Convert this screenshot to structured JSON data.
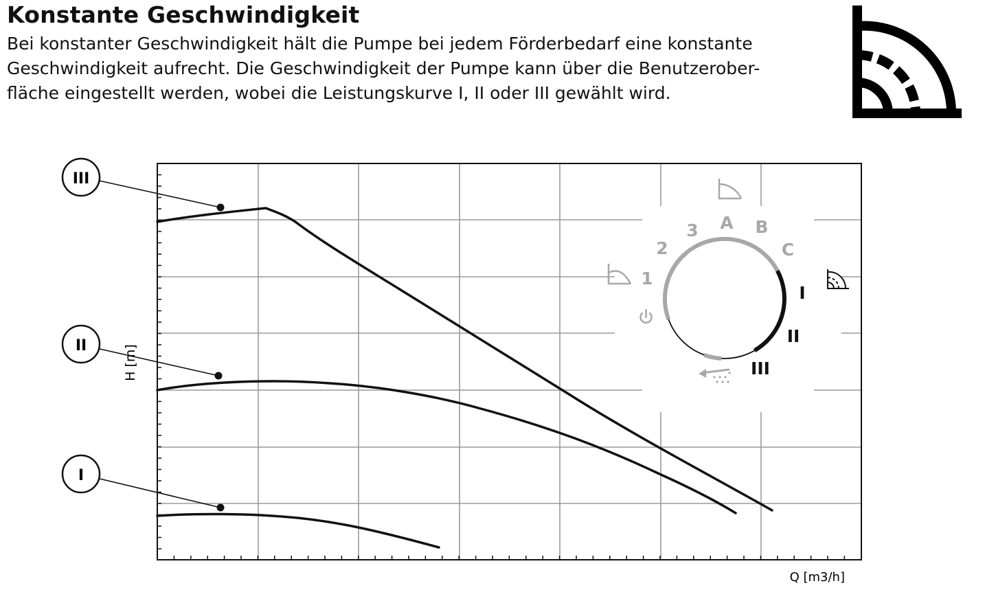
{
  "heading": "Konstante Geschwindigkeit",
  "description_lines": [
    "Bei konstanter Geschwindigkeit hält die Pumpe bei jedem Förderbedarf eine konstante",
    "Geschwindigkeit aufrecht. Die Geschwindigkeit der Pumpe kann über die Benutzerober-",
    "fläche eingestellt werden, wobei die Leistungskurve I, II oder III gewählt wird."
  ],
  "chart": {
    "y_label": "H [m]",
    "x_label": "Q  [m3/h]",
    "curves": [
      {
        "label": "III"
      },
      {
        "label": "II"
      },
      {
        "label": "I"
      }
    ]
  },
  "control_dial": {
    "labels": {
      "one": "1",
      "two": "2",
      "three": "3",
      "a": "A",
      "b": "B",
      "c": "C",
      "speed_1": "I",
      "speed_2": "II",
      "speed_3": "III"
    },
    "icons": [
      "proportional-pressure-icon",
      "constant-pressure-icon",
      "constant-speed-icon",
      "power-icon",
      "venting-icon"
    ],
    "colors": {
      "active": "#000000",
      "inactive": "#a8a8a8"
    }
  },
  "icons": [
    "constant-speed-mode-icon"
  ]
}
